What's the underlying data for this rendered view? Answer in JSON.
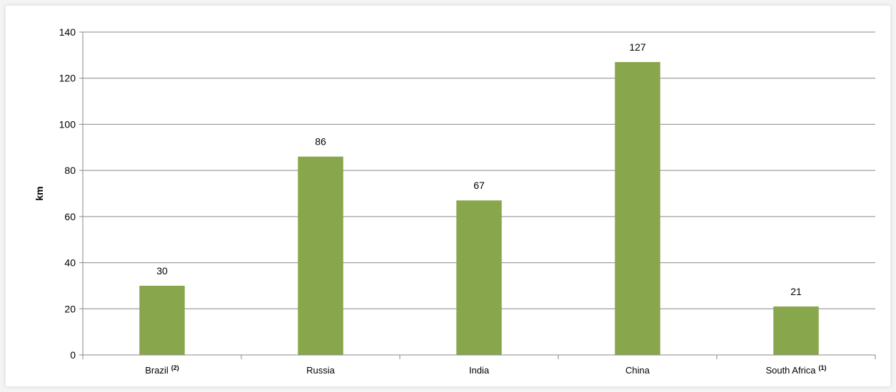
{
  "chart_data": {
    "type": "bar",
    "categories": [
      "Brazil",
      "Russia",
      "India",
      "China",
      "South Africa"
    ],
    "category_notes": [
      "(2)",
      "",
      "",
      "",
      "(1)"
    ],
    "values": [
      30,
      86,
      67,
      127,
      21
    ],
    "data_labels": [
      "30",
      "86",
      "67",
      "127",
      "21"
    ],
    "title": "",
    "xlabel": "",
    "ylabel": "km",
    "ylim": [
      0,
      140
    ],
    "yticks": [
      0,
      20,
      40,
      60,
      80,
      100,
      120,
      140
    ],
    "ytick_labels": [
      "0",
      "20",
      "40",
      "60",
      "80",
      "100",
      "120",
      "140"
    ],
    "grid": true,
    "legend": "none",
    "bar_color": "#88a64b",
    "grid_color": "#888888"
  }
}
